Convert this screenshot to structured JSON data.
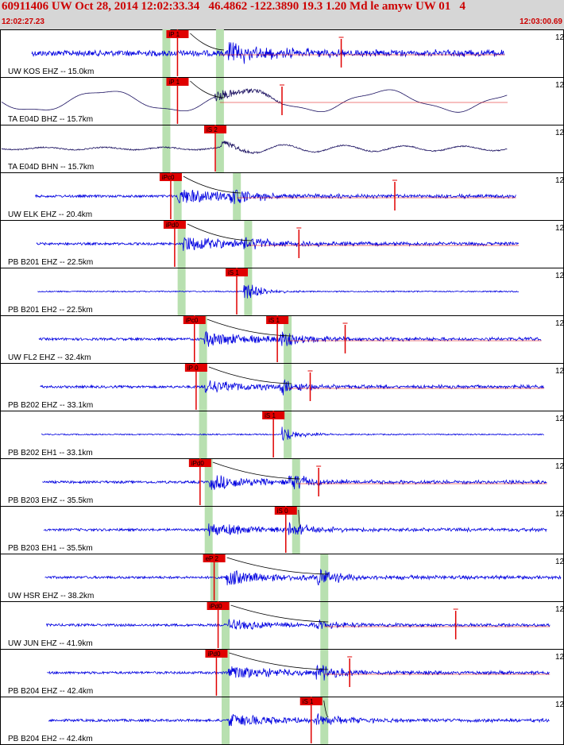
{
  "header": {
    "title": "60911406 UW Oct 28, 2014 12:02:33.34   46.4862 -122.3890 19.3 1.20 Md le amyw UW 01   4",
    "time_start": "12:02:27.23",
    "time_end": "12:03:00.69"
  },
  "colors": {
    "header_bg": "#d6d6d6",
    "title": "#cc0000",
    "trace_blue": "#0000e0",
    "trace_navy": "#1a1060",
    "pick_red": "#e00000",
    "window_green": "#b8e0b0"
  },
  "scale_marker": "12",
  "traces": [
    {
      "label": "UW KOS EHZ -- 15.0km",
      "picks": [
        {
          "text": "iP 1",
          "pos": 0.295
        }
      ],
      "color": "blue",
      "onset": 0.405,
      "end": 0.895,
      "style": "noise",
      "amp": 0.55,
      "green": [
        0.295,
        0.39
      ],
      "coda_mark": 0.605
    },
    {
      "label": "TA E04D BHZ -- 15.7km",
      "picks": [
        {
          "text": "iP 1",
          "pos": 0.295
        }
      ],
      "color": "navy",
      "onset": 0.38,
      "end": 0.9,
      "style": "wave",
      "amp": 0.6,
      "green": [
        0.295,
        0.39
      ],
      "coda_mark": 0.5
    },
    {
      "label": "TA E04D BHN -- 15.7km",
      "picks": [
        {
          "text": "iS 2",
          "pos": 0.362
        }
      ],
      "color": "navy",
      "onset": 0.39,
      "end": 0.9,
      "style": "wavelow",
      "amp": 0.3,
      "green": [
        0.295,
        0.39
      ],
      "coda_mark": null
    },
    {
      "label": "UW ELK EHZ -- 20.4km",
      "picks": [
        {
          "text": "iPc0",
          "pos": 0.283
        }
      ],
      "color": "blue",
      "onset": 0.315,
      "end": 0.915,
      "style": "event",
      "amp": 0.55,
      "green": [
        0.315,
        0.42
      ],
      "coda_mark": 0.7
    },
    {
      "label": "PB B201 EHZ -- 22.5km",
      "picks": [
        {
          "text": "iPd0",
          "pos": 0.29
        }
      ],
      "color": "blue",
      "onset": 0.325,
      "end": 0.92,
      "style": "event",
      "amp": 0.5,
      "green": [
        0.322,
        0.44
      ],
      "coda_mark": 0.53
    },
    {
      "label": "PB B201 EH2 -- 22.5km",
      "picks": [
        {
          "text": "iS 1",
          "pos": 0.4
        }
      ],
      "color": "blue",
      "onset": 0.432,
      "end": 0.92,
      "style": "sonly",
      "amp": 0.55,
      "green": [
        0.322,
        0.44
      ],
      "coda_mark": null
    },
    {
      "label": "UW FL2 EHZ -- 32.4km",
      "picks": [
        {
          "text": "iPc0",
          "pos": 0.325
        },
        {
          "text": "iS 1",
          "pos": 0.472
        }
      ],
      "color": "blue",
      "onset": 0.362,
      "end": 0.96,
      "style": "event",
      "amp": 0.5,
      "green": [
        0.36,
        0.51
      ],
      "coda_mark": 0.612
    },
    {
      "label": "PB B202 EHZ -- 33.1km",
      "picks": [
        {
          "text": "iP 0",
          "pos": 0.328
        }
      ],
      "color": "blue",
      "onset": 0.362,
      "end": 0.965,
      "style": "event2",
      "amp": 0.45,
      "green": [
        0.36,
        0.51
      ],
      "coda_mark": 0.55
    },
    {
      "label": "PB B202 EH1 -- 33.1km",
      "picks": [
        {
          "text": "iS 1",
          "pos": 0.465
        }
      ],
      "color": "blue",
      "onset": 0.5,
      "end": 0.965,
      "style": "sonly",
      "amp": 0.4,
      "green": [
        0.36,
        0.51
      ],
      "coda_mark": null
    },
    {
      "label": "PB B203 EHZ -- 35.5km",
      "picks": [
        {
          "text": "iPd0",
          "pos": 0.335
        }
      ],
      "color": "blue",
      "onset": 0.372,
      "end": 0.97,
      "style": "event",
      "amp": 0.5,
      "green": [
        0.37,
        0.525
      ],
      "coda_mark": 0.565
    },
    {
      "label": "PB B203 EH1 -- 35.5km",
      "picks": [
        {
          "text": "iS 0",
          "pos": 0.487
        }
      ],
      "color": "blue",
      "onset": 0.37,
      "end": 0.97,
      "style": "event",
      "amp": 0.45,
      "green": [
        0.37,
        0.525
      ],
      "coda_mark": null
    },
    {
      "label": "UW HSR EHZ -- 38.2km",
      "picks": [
        {
          "text": "eP 2",
          "pos": 0.36
        }
      ],
      "color": "blue",
      "onset": 0.4,
      "end": 0.995,
      "style": "event",
      "amp": 0.5,
      "green": [
        0.38,
        0.575
      ],
      "coda_mark": null
    },
    {
      "label": "UW JUN EHZ -- 41.9km",
      "picks": [
        {
          "text": "iPd0",
          "pos": 0.367
        }
      ],
      "color": "blue",
      "onset": 0.405,
      "end": 0.975,
      "style": "event2",
      "amp": 0.35,
      "green": [
        0.4,
        0.575
      ],
      "coda_mark": 0.808
    },
    {
      "label": "PB B204 EHZ -- 42.4km",
      "picks": [
        {
          "text": "iPd0",
          "pos": 0.364
        }
      ],
      "color": "blue",
      "onset": 0.405,
      "end": 0.975,
      "style": "event",
      "amp": 0.5,
      "green": [
        0.4,
        0.575
      ],
      "coda_mark": 0.62
    },
    {
      "label": "PB B204 EH2 -- 42.4km",
      "picks": [
        {
          "text": "iS 1",
          "pos": 0.532
        }
      ],
      "color": "blue",
      "onset": 0.405,
      "end": 0.975,
      "style": "event",
      "amp": 0.45,
      "green": [
        0.4,
        0.575
      ],
      "coda_mark": null
    }
  ]
}
